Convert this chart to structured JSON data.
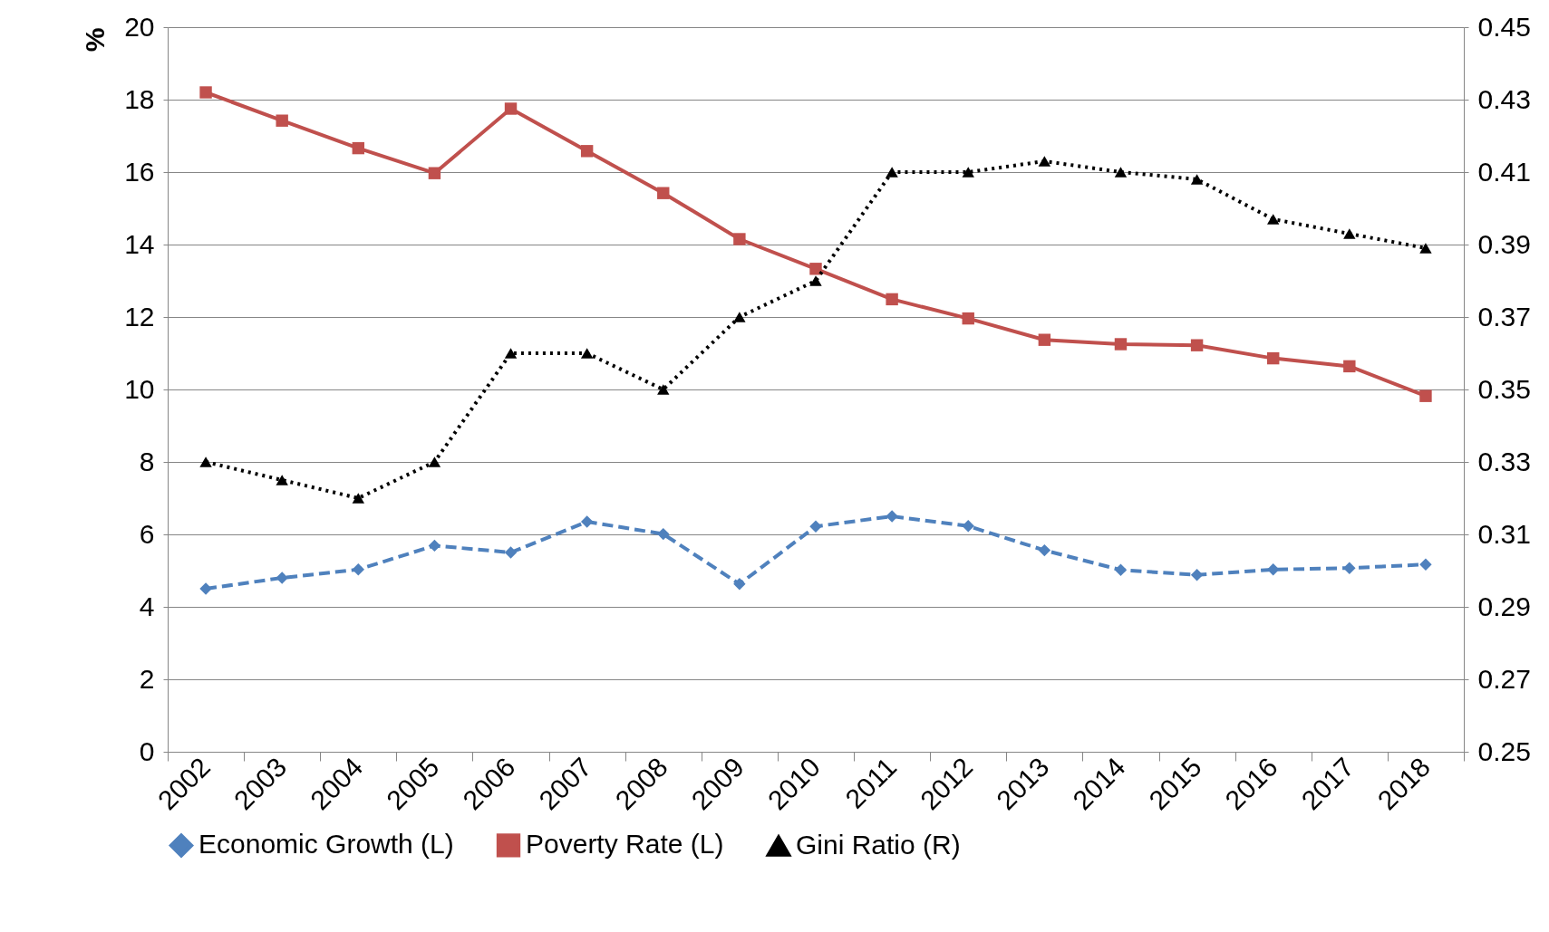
{
  "chart_data": {
    "type": "line",
    "ylabel": "%",
    "categories": [
      "2002",
      "2003",
      "2004",
      "2005",
      "2006",
      "2007",
      "2008",
      "2009",
      "2010",
      "2011",
      "2012",
      "2013",
      "2014",
      "2015",
      "2016",
      "2017",
      "2018"
    ],
    "series": [
      {
        "name": "Economic Growth (L)",
        "color": "#4f81bd",
        "marker": "diamond",
        "line_style": "dashed",
        "values": [
          4.5,
          4.8,
          5.03,
          5.69,
          5.5,
          6.35,
          6.01,
          4.63,
          6.22,
          6.5,
          6.23,
          5.56,
          5.02,
          4.88,
          5.03,
          5.07,
          5.17
        ]
      },
      {
        "name": "Poverty Rate (L)",
        "color": "#c0504d",
        "marker": "square",
        "line_style": "solid",
        "values": [
          18.2,
          17.42,
          16.66,
          15.97,
          17.75,
          16.58,
          15.42,
          14.15,
          13.33,
          12.49,
          11.96,
          11.37,
          11.25,
          11.22,
          10.86,
          10.64,
          9.82
        ]
      },
      {
        "name": "Gini Ratio (R)",
        "color": "#000000",
        "marker": "triangle",
        "line_style": "dotted",
        "axis": "y2",
        "values": [
          0.33,
          0.325,
          0.32,
          0.33,
          0.36,
          0.36,
          0.35,
          0.37,
          0.38,
          0.41,
          0.41,
          0.413,
          0.41,
          0.408,
          0.397,
          0.393,
          0.389
        ]
      }
    ],
    "ylim": [
      0,
      20
    ],
    "yticks": [
      0,
      2,
      4,
      6,
      8,
      10,
      12,
      14,
      16,
      18,
      20
    ],
    "y2lim": [
      0.25,
      0.45
    ],
    "y2ticks": [
      0.25,
      0.27,
      0.29,
      0.31,
      0.33,
      0.35,
      0.37,
      0.39,
      0.41,
      0.43,
      0.45
    ],
    "grid": "y",
    "legend": "bottom"
  }
}
